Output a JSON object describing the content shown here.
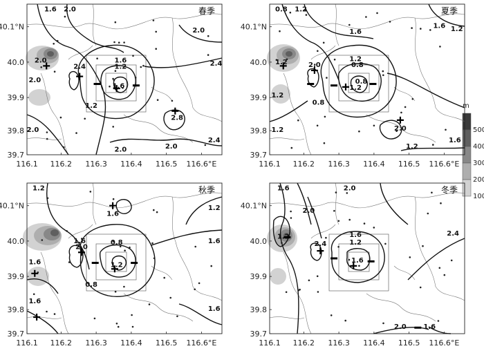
{
  "map_data": {
    "x_ticks": [
      "116.1",
      "116.2",
      "116.3",
      "116.4",
      "116.5",
      "116.6°E"
    ],
    "y_ticks": [
      "40.1°N",
      "40.0",
      "39.9",
      "39.8",
      "39.7"
    ],
    "legend": {
      "unit": "m",
      "levels": [
        "500",
        "400",
        "300",
        "200",
        "100"
      ],
      "colors": [
        "#3a3a3a",
        "#5f5f5f",
        "#888888",
        "#aeaeae",
        "#d2d2d2"
      ]
    },
    "panels": [
      {
        "season": "春季",
        "contour_labels": [
          {
            "text": "1.6",
            "x": 0.12,
            "y": 0.97
          },
          {
            "text": "2.0",
            "x": 0.22,
            "y": 0.97
          },
          {
            "text": "2.0",
            "x": 0.88,
            "y": 0.83
          },
          {
            "text": "2.0",
            "x": 0.07,
            "y": 0.63
          },
          {
            "text": "2.4",
            "x": 0.27,
            "y": 0.59
          },
          {
            "text": "1.6",
            "x": 0.48,
            "y": 0.63
          },
          {
            "text": "1.2",
            "x": 0.48,
            "y": 0.59
          },
          {
            "text": "2.4",
            "x": 0.97,
            "y": 0.61
          },
          {
            "text": "2.0",
            "x": 0.04,
            "y": 0.5
          },
          {
            "text": "1.6",
            "x": 0.47,
            "y": 0.46
          },
          {
            "text": "1.2",
            "x": 0.33,
            "y": 0.33
          },
          {
            "text": "2.8",
            "x": 0.77,
            "y": 0.25
          },
          {
            "text": "2.0",
            "x": 0.03,
            "y": 0.17
          },
          {
            "text": "2.0",
            "x": 0.48,
            "y": 0.04
          },
          {
            "text": "2.0",
            "x": 0.74,
            "y": 0.06
          },
          {
            "text": "2.4",
            "x": 0.96,
            "y": 0.1
          }
        ],
        "plus": [
          {
            "x": 0.1,
            "y": 0.59
          },
          {
            "x": 0.27,
            "y": 0.52
          },
          {
            "x": 0.46,
            "y": 0.44
          },
          {
            "x": 0.76,
            "y": 0.29
          }
        ],
        "minus": [
          {
            "x": 0.36,
            "y": 0.47
          },
          {
            "x": 0.56,
            "y": 0.46
          }
        ]
      },
      {
        "season": "夏季",
        "contour_labels": [
          {
            "text": "0.8",
            "x": 0.06,
            "y": 0.97
          },
          {
            "text": "1.2",
            "x": 0.16,
            "y": 0.97
          },
          {
            "text": "1.6",
            "x": 0.87,
            "y": 0.86
          },
          {
            "text": "1.2",
            "x": 0.96,
            "y": 0.84
          },
          {
            "text": "1.6",
            "x": 0.44,
            "y": 0.82
          },
          {
            "text": "1.2",
            "x": 0.06,
            "y": 0.62
          },
          {
            "text": "2.0",
            "x": 0.23,
            "y": 0.6
          },
          {
            "text": "1.2",
            "x": 0.44,
            "y": 0.64
          },
          {
            "text": "0.8",
            "x": 0.45,
            "y": 0.6
          },
          {
            "text": "1.2",
            "x": 0.44,
            "y": 0.45
          },
          {
            "text": "0.8",
            "x": 0.47,
            "y": 0.49
          },
          {
            "text": "1.2",
            "x": 0.04,
            "y": 0.4
          },
          {
            "text": "0.8",
            "x": 0.25,
            "y": 0.35
          },
          {
            "text": "2.0",
            "x": 0.67,
            "y": 0.18
          },
          {
            "text": "1.2",
            "x": 0.04,
            "y": 0.17
          },
          {
            "text": "1.2",
            "x": 0.73,
            "y": 0.06
          },
          {
            "text": "1.6",
            "x": 0.95,
            "y": 0.1
          }
        ],
        "plus": [
          {
            "x": 0.07,
            "y": 0.59
          },
          {
            "x": 0.23,
            "y": 0.56
          },
          {
            "x": 0.39,
            "y": 0.45
          },
          {
            "x": 0.67,
            "y": 0.23
          }
        ],
        "minus": [
          {
            "x": 0.21,
            "y": 0.47
          },
          {
            "x": 0.33,
            "y": 0.46
          },
          {
            "x": 0.53,
            "y": 0.47
          }
        ]
      },
      {
        "season": "秋季",
        "contour_labels": [
          {
            "text": "1.2",
            "x": 0.06,
            "y": 0.97
          },
          {
            "text": "1.2",
            "x": 0.96,
            "y": 0.84
          },
          {
            "text": "1.6",
            "x": 0.96,
            "y": 0.62
          },
          {
            "text": "1.6",
            "x": 0.44,
            "y": 0.8
          },
          {
            "text": "1.6",
            "x": 0.27,
            "y": 0.62
          },
          {
            "text": "2.0",
            "x": 0.28,
            "y": 0.58
          },
          {
            "text": "0.8",
            "x": 0.46,
            "y": 0.61
          },
          {
            "text": "1.2",
            "x": 0.46,
            "y": 0.46
          },
          {
            "text": "1.6",
            "x": 0.04,
            "y": 0.48
          },
          {
            "text": "0.8",
            "x": 0.33,
            "y": 0.33
          },
          {
            "text": "1.6",
            "x": 0.04,
            "y": 0.22
          },
          {
            "text": "1.6",
            "x": 0.96,
            "y": 0.17
          }
        ],
        "plus": [
          {
            "x": 0.44,
            "y": 0.85
          },
          {
            "x": 0.28,
            "y": 0.54
          },
          {
            "x": 0.45,
            "y": 0.43
          },
          {
            "x": 0.04,
            "y": 0.4
          },
          {
            "x": 0.05,
            "y": 0.11
          }
        ],
        "minus": [
          {
            "x": 0.35,
            "y": 0.47
          },
          {
            "x": 0.55,
            "y": 0.47
          }
        ]
      },
      {
        "season": "冬季",
        "contour_labels": [
          {
            "text": "1.6",
            "x": 0.07,
            "y": 0.97
          },
          {
            "text": "2.0",
            "x": 0.41,
            "y": 0.97
          },
          {
            "text": "2.0",
            "x": 0.2,
            "y": 0.82
          },
          {
            "text": "2.4",
            "x": 0.94,
            "y": 0.67
          },
          {
            "text": "1.2",
            "x": 0.07,
            "y": 0.65
          },
          {
            "text": "1.6",
            "x": 0.44,
            "y": 0.66
          },
          {
            "text": "1.2",
            "x": 0.44,
            "y": 0.61
          },
          {
            "text": "2.4",
            "x": 0.26,
            "y": 0.6
          },
          {
            "text": "1.6",
            "x": 0.45,
            "y": 0.49
          },
          {
            "text": "2.0",
            "x": 0.67,
            "y": 0.05
          },
          {
            "text": "1.6",
            "x": 0.82,
            "y": 0.05
          }
        ],
        "plus": [
          {
            "x": 0.26,
            "y": 0.55
          },
          {
            "x": 0.43,
            "y": 0.45
          }
        ],
        "minus": [
          {
            "x": 0.09,
            "y": 0.64
          },
          {
            "x": 0.33,
            "y": 0.5
          },
          {
            "x": 0.52,
            "y": 0.48
          },
          {
            "x": 0.76,
            "y": 0.04
          }
        ]
      }
    ]
  }
}
